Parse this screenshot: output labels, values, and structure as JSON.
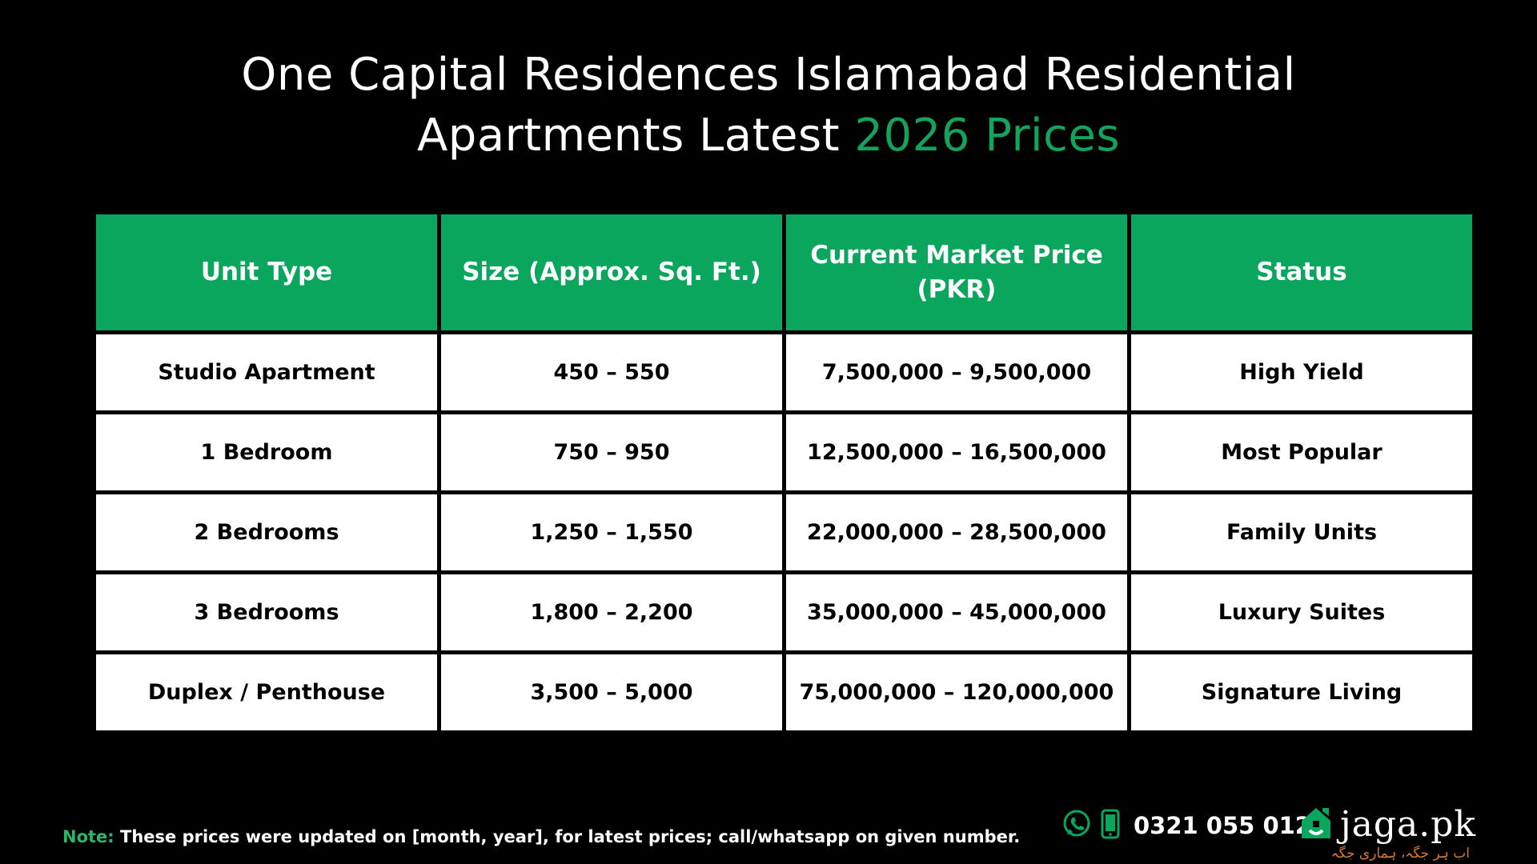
{
  "title": {
    "line1": "One Capital Residences Islamabad Residential",
    "line2_prefix": "Apartments Latest ",
    "line2_accent": "2026 Prices"
  },
  "table": {
    "headers": [
      "Unit Type",
      "Size (Approx. Sq. Ft.)",
      "Current Market Price (PKR)",
      "Status"
    ],
    "rows": [
      [
        "Studio Apartment",
        "450 – 550",
        "7,500,000 – 9,500,000",
        "High Yield"
      ],
      [
        "1 Bedroom",
        "750 – 950",
        "12,500,000 – 16,500,000",
        "Most Popular"
      ],
      [
        "2 Bedrooms",
        "1,250 – 1,550",
        "22,000,000 – 28,500,000",
        "Family Units"
      ],
      [
        "3 Bedrooms",
        "1,800 – 2,200",
        "35,000,000 – 45,000,000",
        "Luxury Suites"
      ],
      [
        "Duplex / Penthouse",
        "3,500 – 5,000",
        "75,000,000 – 120,000,000",
        "Signature Living"
      ]
    ]
  },
  "note": {
    "label": "Note:",
    "text": " These prices were updated on [month, year], for latest prices; call/whatsapp on given number."
  },
  "contact": {
    "phone": "0321 055 0123",
    "icons": [
      "whatsapp-icon",
      "mobile-phone-icon"
    ]
  },
  "brand": {
    "name": "jaga.pk",
    "tagline": "اب ہر جگہ، ہماری جگہ",
    "logo_icon": "house-logo-icon"
  },
  "colors": {
    "background": "#000000",
    "accent_green": "#0aa65e",
    "note_label_green": "#2fb56a",
    "tagline_orange": "#d9782b"
  }
}
